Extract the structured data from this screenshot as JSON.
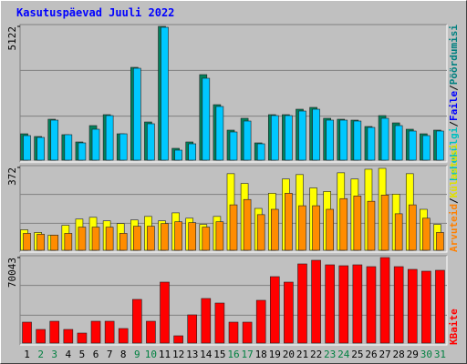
{
  "title": "Kasutuspäevad Juuli 2022",
  "chart_data": [
    {
      "type": "bar",
      "ylim": [
        0,
        5122
      ],
      "yticks": [
        5122
      ],
      "legend_separator": "/",
      "extra_legend": {
        "name": "Lehekülgi",
        "color": "#00c0c0"
      },
      "series": [
        {
          "name": "Pöördumisi",
          "color": "#00805c",
          "label_color": "#008080",
          "values": [
            1010,
            906,
            1568,
            976,
            697,
            1324,
            1742,
            1010,
            3554,
            1463,
            5122,
            453,
            697,
            3275,
            2125,
            1150,
            1603,
            662,
            1742,
            1742,
            1951,
            2021,
            1603,
            1568,
            1533,
            1289,
            1707,
            1428,
            1185,
            1010,
            1150
          ]
        },
        {
          "name": "Faile",
          "color": "#00c8ff",
          "label_color": "#0000ff",
          "values": [
            941,
            871,
            1533,
            976,
            662,
            1185,
            1707,
            1010,
            3519,
            1394,
            5087,
            383,
            627,
            3136,
            2056,
            1080,
            1498,
            627,
            1707,
            1707,
            1881,
            1951,
            1533,
            1533,
            1498,
            1254,
            1603,
            1324,
            1115,
            941,
            1115
          ]
        }
      ]
    },
    {
      "type": "bar",
      "ylim": [
        0,
        372
      ],
      "yticks": [
        372
      ],
      "legend_separator": "/",
      "series": [
        {
          "name": "Külastusi",
          "color": "#ffff00",
          "label_color": "#e0e000",
          "values": [
            92,
            80,
            68,
            112,
            140,
            148,
            132,
            120,
            136,
            152,
            132,
            168,
            144,
            116,
            152,
            344,
            300,
            188,
            256,
            320,
            340,
            280,
            264,
            348,
            320,
            364,
            368,
            252,
            344,
            184,
            116
          ]
        },
        {
          "name": "Arvuteid",
          "color": "#ff8c00",
          "label_color": "#ff8000",
          "values": [
            76,
            72,
            68,
            76,
            104,
            104,
            104,
            76,
            108,
            108,
            120,
            128,
            124,
            104,
            128,
            204,
            228,
            160,
            184,
            256,
            200,
            200,
            184,
            232,
            244,
            220,
            248,
            164,
            204,
            144,
            80
          ]
        }
      ]
    },
    {
      "type": "bar",
      "ylim": [
        0,
        70043
      ],
      "yticks": [
        70043
      ],
      "categories": [
        "1",
        "2",
        "3",
        "4",
        "5",
        "6",
        "7",
        "8",
        "9",
        "10",
        "11",
        "12",
        "13",
        "14",
        "15",
        "16",
        "17",
        "18",
        "19",
        "20",
        "21",
        "22",
        "23",
        "24",
        "25",
        "26",
        "27",
        "28",
        "29",
        "30",
        "31"
      ],
      "label_colors": [
        "#000000",
        "#008040",
        "#008040",
        "#000000",
        "#000000",
        "#000000",
        "#000000",
        "#000000",
        "#008040",
        "#008040",
        "#000000",
        "#000000",
        "#000000",
        "#000000",
        "#000000",
        "#008040",
        "#008040",
        "#000000",
        "#000000",
        "#000000",
        "#000000",
        "#000000",
        "#008040",
        "#008040",
        "#000000",
        "#000000",
        "#000000",
        "#000000",
        "#000000",
        "#008040",
        "#008040"
      ],
      "series": [
        {
          "name": "KBaite",
          "color": "#ff0000",
          "label_color": "#ff0000",
          "values": [
            17138,
            11177,
            17883,
            11177,
            8197,
            17883,
            17883,
            11922,
            35767,
            17883,
            49924,
            5961,
            23099,
            36512,
            32786,
            17138,
            17138,
            35021,
            54395,
            49924,
            64827,
            67807,
            64082,
            63337,
            64082,
            62592,
            70043,
            62592,
            60357,
            58867,
            59612
          ]
        }
      ]
    }
  ]
}
